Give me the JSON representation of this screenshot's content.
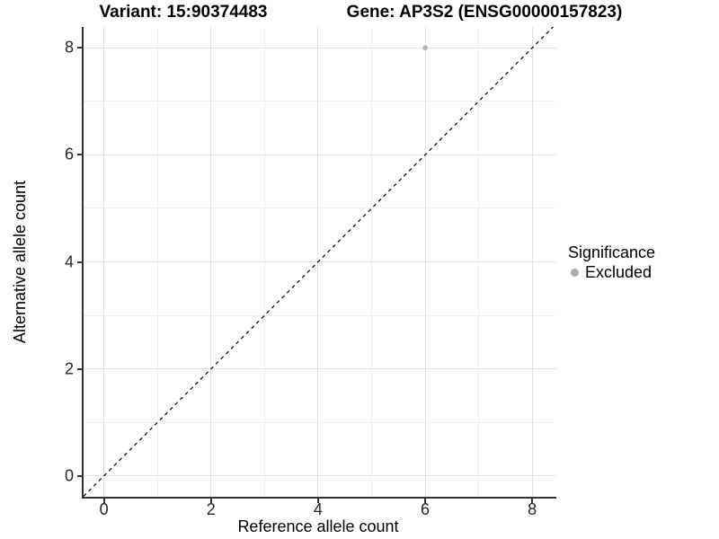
{
  "titles": {
    "left": "Variant: 15:90374483",
    "right": "Gene: AP3S2 (ENSG00000157823)"
  },
  "chart_data": {
    "type": "scatter",
    "title_left": "Variant: 15:90374483",
    "title_right": "Gene: AP3S2 (ENSG00000157823)",
    "xlabel": "Reference allele count",
    "ylabel": "Alternative allele count",
    "xlim": [
      -0.38,
      8.45
    ],
    "ylim": [
      -0.39,
      8.39
    ],
    "x_ticks": [
      0,
      2,
      4,
      6,
      8
    ],
    "y_ticks": [
      0,
      2,
      4,
      6,
      8
    ],
    "x_minor_ticks": [
      1,
      3,
      5,
      7
    ],
    "y_minor_ticks": [
      1,
      3,
      5,
      7
    ],
    "grid": true,
    "points": [
      {
        "x": 6,
        "y": 8,
        "series": "Excluded",
        "color": "#b3b3b3",
        "radius": 2.8
      }
    ],
    "reference_line": {
      "type": "identity",
      "equation": "y = x",
      "style": "dashed",
      "color": "#000000"
    },
    "legend": {
      "title": "Significance",
      "position": "right",
      "items": [
        {
          "label": "Excluded",
          "color": "#adadad",
          "marker": "circle"
        }
      ]
    }
  },
  "colors": {
    "background": "#ffffff",
    "axis_line": "#333333",
    "grid_major": "#e2e2e2",
    "grid_minor": "#f0f0f0",
    "tick_text": "#262626"
  }
}
